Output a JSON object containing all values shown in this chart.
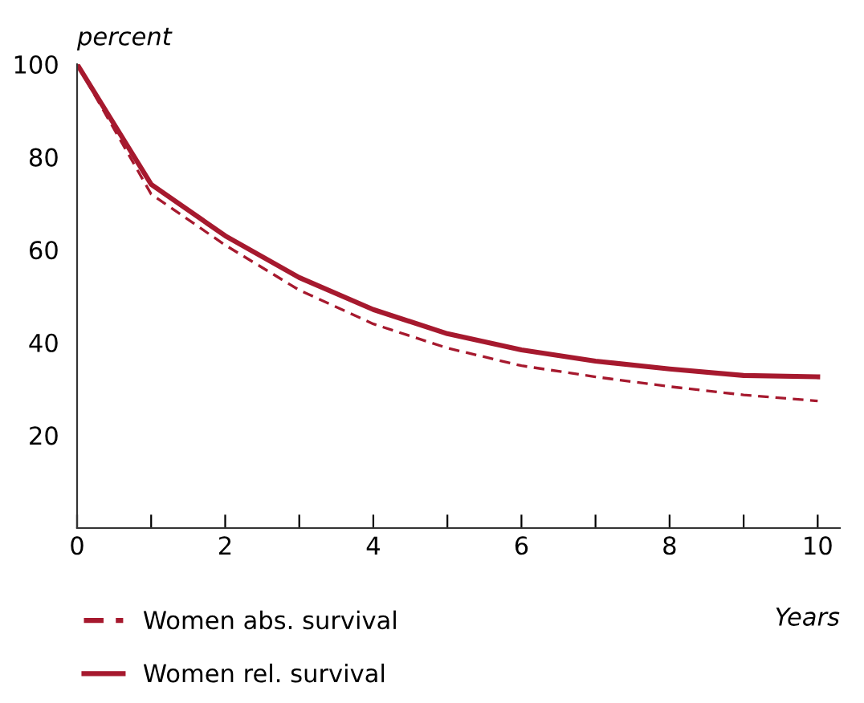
{
  "chart_data": {
    "type": "line",
    "xlabel": "Years",
    "ylabel": "percent",
    "x": [
      0,
      1,
      2,
      3,
      4,
      5,
      6,
      7,
      8,
      9,
      10
    ],
    "series": [
      {
        "name": "Women abs. survival",
        "color": "#a6192e",
        "line_style": "dashed",
        "values": [
          100,
          72,
          61,
          51.3,
          44,
          38.8,
          35,
          32.6,
          30.5,
          28.7,
          27.4
        ]
      },
      {
        "name": "Women rel. survival",
        "color": "#a6192e",
        "line_style": "solid",
        "values": [
          100,
          74.1,
          63,
          54,
          47.1,
          41.9,
          38.4,
          36,
          34.3,
          32.9,
          32.6
        ]
      }
    ],
    "xlim": [
      0,
      10.3
    ],
    "ylim": [
      0,
      100
    ],
    "xticks": [
      0,
      {
        "value": 1,
        "label": null
      },
      2,
      {
        "value": 3,
        "label": null
      },
      4,
      {
        "value": 5,
        "label": null
      },
      6,
      {
        "value": 7,
        "label": null
      },
      8,
      {
        "value": 9,
        "label": null
      },
      10
    ],
    "yticks": [
      20,
      40,
      60,
      80,
      100
    ],
    "grid": false,
    "legend": "bottom left"
  }
}
